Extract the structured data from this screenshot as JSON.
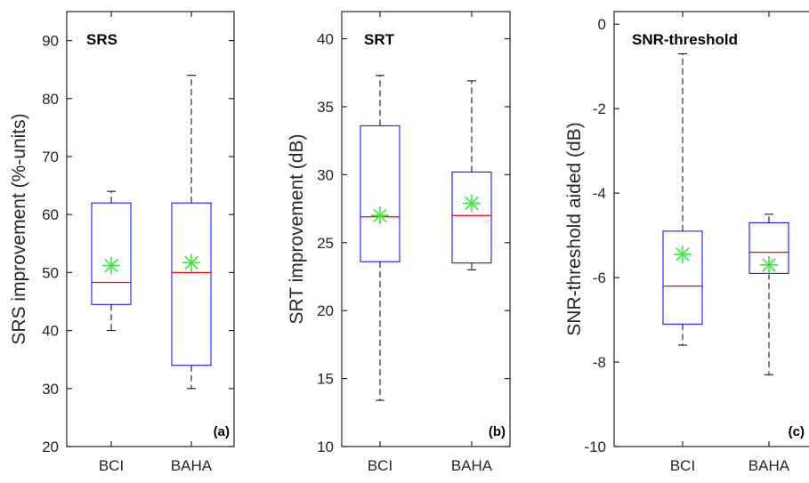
{
  "chart_data": [
    {
      "type": "box",
      "title": "SRS",
      "panel_label": "(a)",
      "ylabel": "SRS improvement (%-units)",
      "ylim": [
        20,
        95
      ],
      "yticks": [
        20,
        30,
        40,
        50,
        60,
        70,
        80,
        90
      ],
      "categories": [
        "BCI",
        "BAHA"
      ],
      "boxes": [
        {
          "category": "BCI",
          "whisker_low": 40,
          "q1": 44.5,
          "median": 48.3,
          "q3": 62,
          "whisker_high": 64,
          "mean": 51.2
        },
        {
          "category": "BAHA",
          "whisker_low": 30,
          "q1": 34,
          "median": 50,
          "q3": 62,
          "whisker_high": 84,
          "mean": 51.7
        }
      ]
    },
    {
      "type": "box",
      "title": "SRT",
      "panel_label": "(b)",
      "ylabel": "SRT improvement (dB)",
      "ylim": [
        10,
        42
      ],
      "yticks": [
        10,
        15,
        20,
        25,
        30,
        35,
        40
      ],
      "categories": [
        "BCI",
        "BAHA"
      ],
      "boxes": [
        {
          "category": "BCI",
          "whisker_low": 13.4,
          "q1": 23.6,
          "median": 26.9,
          "q3": 33.6,
          "whisker_high": 37.3,
          "mean": 27.0
        },
        {
          "category": "BAHA",
          "whisker_low": 23.0,
          "q1": 23.5,
          "median": 27.0,
          "q3": 30.2,
          "whisker_high": 36.9,
          "mean": 27.9
        }
      ]
    },
    {
      "type": "box",
      "title": "SNR-threshold",
      "panel_label": "(c)",
      "ylabel": "SNR-threshold aided (dB)",
      "ylim": [
        -10,
        0.3
      ],
      "yticks": [
        -10,
        -8,
        -6,
        -4,
        -2,
        0
      ],
      "categories": [
        "BCI",
        "BAHA"
      ],
      "boxes": [
        {
          "category": "BCI",
          "whisker_low": -7.6,
          "q1": -7.1,
          "median": -6.2,
          "q3": -4.9,
          "whisker_high": -0.7,
          "mean": -5.45
        },
        {
          "category": "BAHA",
          "whisker_low": -8.3,
          "q1": -5.9,
          "median": -5.4,
          "q3": -4.7,
          "whisker_high": -4.5,
          "mean": -5.7
        }
      ]
    }
  ],
  "colors": {
    "box": "#0000ff",
    "median": "#ff0000",
    "mean_marker": "#33ee33",
    "whisker": "#000000",
    "axis": "#262626"
  }
}
